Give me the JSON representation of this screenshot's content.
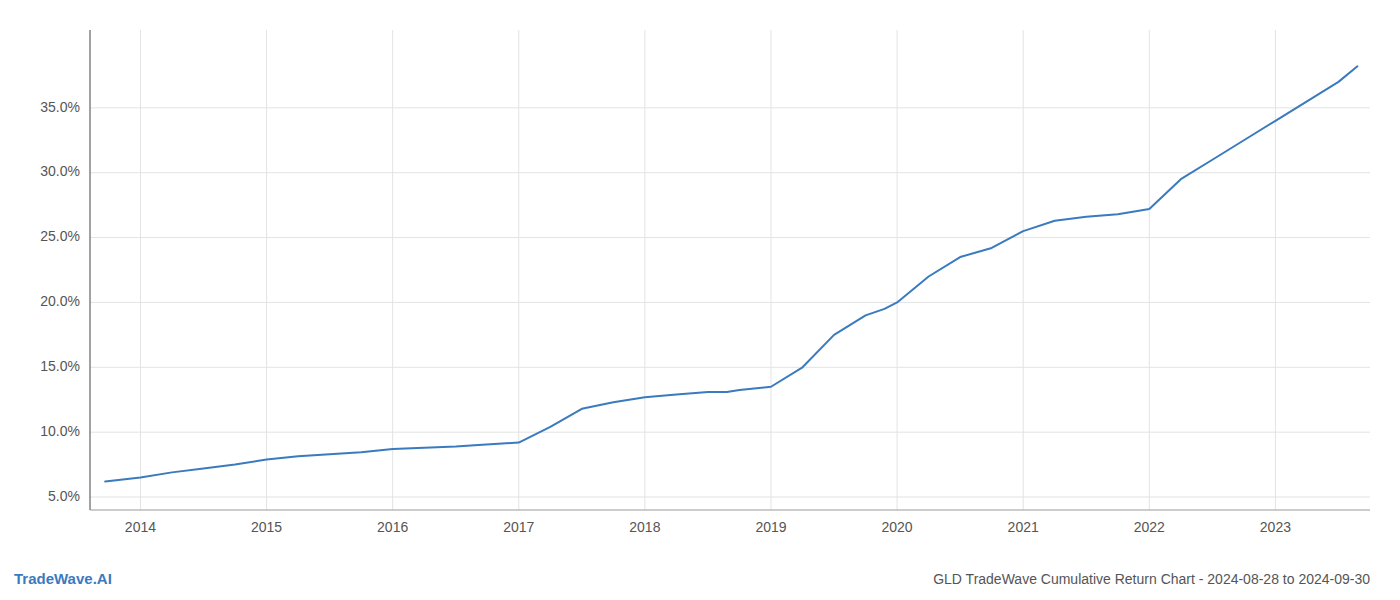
{
  "chart_data": {
    "type": "line",
    "title": "GLD TradeWave Cumulative Return Chart - 2024-08-28 to 2024-09-30",
    "annotations": [
      "TradeWave.AI"
    ],
    "color": "#3a7abf",
    "x": [
      2013.72,
      2014.0,
      2014.25,
      2014.5,
      2014.75,
      2015.0,
      2015.25,
      2015.5,
      2015.75,
      2016.0,
      2016.25,
      2016.5,
      2016.65,
      2017.0,
      2017.25,
      2017.5,
      2017.75,
      2018.0,
      2018.25,
      2018.5,
      2018.65,
      2018.75,
      2019.0,
      2019.25,
      2019.5,
      2019.75,
      2019.9,
      2020.0,
      2020.25,
      2020.5,
      2020.75,
      2021.0,
      2021.25,
      2021.5,
      2021.75,
      2022.0,
      2022.25,
      2022.5,
      2022.75,
      2023.0,
      2023.25,
      2023.5,
      2023.65
    ],
    "values": [
      6.2,
      6.5,
      6.9,
      7.2,
      7.5,
      7.9,
      8.15,
      8.3,
      8.45,
      8.7,
      8.8,
      8.9,
      9.0,
      9.2,
      10.4,
      11.8,
      12.3,
      12.7,
      12.9,
      13.1,
      13.1,
      13.25,
      13.5,
      15.0,
      17.5,
      19.0,
      19.5,
      20.0,
      22.0,
      23.5,
      24.2,
      25.5,
      26.3,
      26.6,
      26.8,
      27.2,
      29.5,
      31.0,
      32.5,
      34.0,
      35.5,
      37.0,
      38.2
    ],
    "xlim": [
      2013.6,
      2023.75
    ],
    "xticks": [
      2014,
      2015,
      2016,
      2017,
      2018,
      2019,
      2020,
      2021,
      2022,
      2023
    ],
    "ylim": [
      4.0,
      41.0
    ],
    "yticks": [
      {
        "value": 5.0,
        "label": "5.0%"
      },
      {
        "value": 10.0,
        "label": "10.0%"
      },
      {
        "value": 15.0,
        "label": "15.0%"
      },
      {
        "value": 20.0,
        "label": "20.0%"
      },
      {
        "value": 25.0,
        "label": "25.0%"
      },
      {
        "value": 30.0,
        "label": "30.0%"
      },
      {
        "value": 35.0,
        "label": "35.0%"
      }
    ],
    "grid": true
  }
}
